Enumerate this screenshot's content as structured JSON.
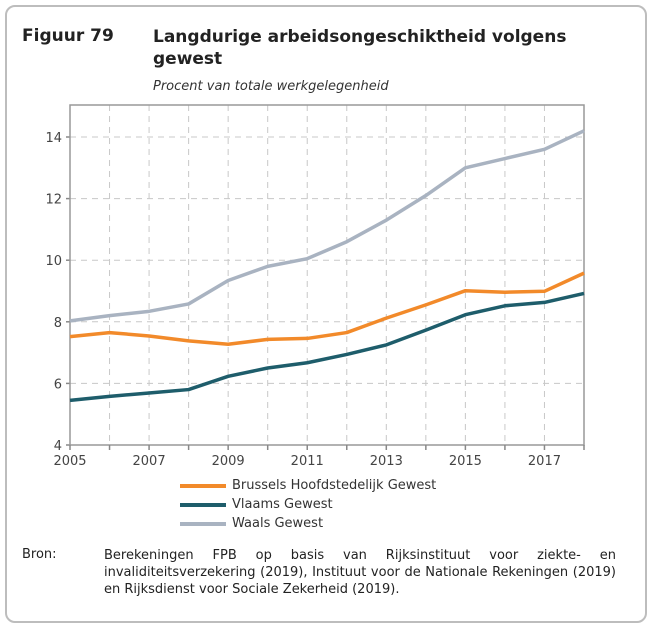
{
  "figure_label": "Figuur 79",
  "chart_data": {
    "type": "line",
    "title": "Langdurige arbeidsongeschiktheid volgens gewest",
    "subtitle": "Procent van totale werkgelegenheid",
    "xlabel": "",
    "ylabel": "",
    "x": [
      2005,
      2006,
      2007,
      2008,
      2009,
      2010,
      2011,
      2012,
      2013,
      2014,
      2015,
      2016,
      2017,
      2018
    ],
    "xticks": [
      "2005",
      "2007",
      "2009",
      "2011",
      "2013",
      "2015",
      "2017"
    ],
    "yticks": [
      "4",
      "6",
      "8",
      "10",
      "12",
      "14"
    ],
    "ylim": [
      4,
      15
    ],
    "xlim": [
      2005,
      2018
    ],
    "grid": true,
    "legend_position": "bottom",
    "series": [
      {
        "name": "Brussels Hoofdstedelijk Gewest",
        "color": "#f28a2a",
        "values": [
          7.52,
          7.65,
          7.54,
          7.38,
          7.27,
          7.43,
          7.46,
          7.65,
          8.12,
          8.55,
          9.01,
          8.96,
          8.99,
          9.58
        ]
      },
      {
        "name": "Vlaams Gewest",
        "color": "#1e5d6b",
        "values": [
          5.45,
          5.58,
          5.69,
          5.8,
          6.23,
          6.5,
          6.67,
          6.94,
          7.25,
          7.73,
          8.23,
          8.52,
          8.63,
          8.92
        ]
      },
      {
        "name": "Waals Gewest",
        "color": "#a9b3c1",
        "values": [
          8.03,
          8.2,
          8.34,
          8.58,
          9.34,
          9.8,
          10.05,
          10.6,
          11.3,
          12.1,
          13.0,
          13.3,
          13.6,
          14.2
        ]
      }
    ]
  },
  "source_label": "Bron:",
  "source_text": "Berekeningen FPB op basis van Rijksinstituut voor ziekte- en invaliditeitsverzekering (2019), Instituut voor de Nationale Rekeningen (2019) en Rijksdienst voor Sociale Zekerheid (2019)."
}
